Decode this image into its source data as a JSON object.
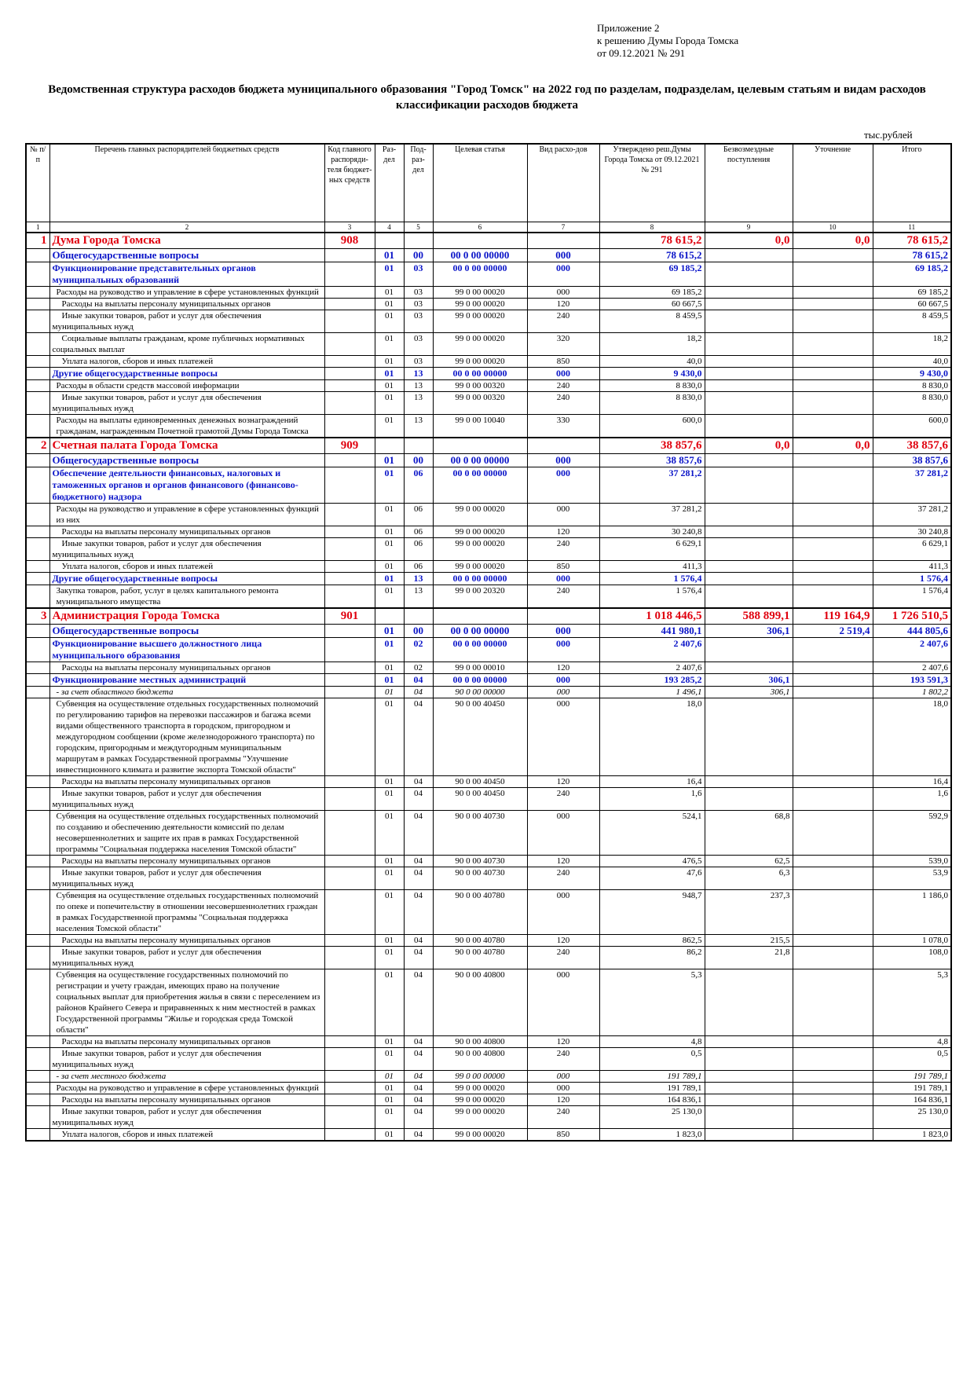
{
  "appendix": {
    "line1": "Приложение 2",
    "line2": "к решению Думы Города Томска",
    "line3": "от 09.12.2021 № 291"
  },
  "title": "Ведомственная структура расходов бюджета муниципального образования \"Город Томск\" на 2022 год по разделам, подразделам, целевым статьям и видам расходов классификации расходов бюджета",
  "units": "тыс.рублей",
  "columns": [
    "№ п/п",
    "Перечень главных распорядителей бюджетных средств",
    "Код главного распоряди-теля бюджет-ных средств",
    "Раз-дел",
    "Под-раз-дел",
    "Целевая статья",
    "Вид расхо-дов",
    "Утверждено реш.Думы Города Томска от 09.12.2021 № 291",
    "Безвозмездные поступления",
    "Уточнение",
    "Итого"
  ],
  "column_numbers": [
    "1",
    "2",
    "3",
    "4",
    "5",
    "6",
    "7",
    "8",
    "9",
    "10",
    "11"
  ],
  "rows": [
    {
      "lvl": 0,
      "no": "1",
      "name": "Дума Города Томска",
      "code": "908",
      "razd": "",
      "podr": "",
      "cs": "",
      "vr": "",
      "appr": "78 615,2",
      "bez": "0,0",
      "utoch": "0,0",
      "total": "78 615,2"
    },
    {
      "lvl": 1,
      "no": "",
      "name": "Общегосударственные вопросы",
      "code": "",
      "razd": "01",
      "podr": "00",
      "cs": "00 0 00 00000",
      "vr": "000",
      "appr": "78 615,2",
      "bez": "",
      "utoch": "",
      "total": "78 615,2"
    },
    {
      "lvl": 2,
      "no": "",
      "name": "Функционирование представительных органов муниципальных образований",
      "code": "",
      "razd": "01",
      "podr": "03",
      "cs": "00 0 00 00000",
      "vr": "000",
      "appr": "69 185,2",
      "bez": "",
      "utoch": "",
      "total": "69 185,2"
    },
    {
      "lvl": 3,
      "no": "",
      "name": "Расходы на руководство и управление в сфере установленных функций",
      "code": "",
      "razd": "01",
      "podr": "03",
      "cs": "99 0 00 00020",
      "vr": "000",
      "appr": "69 185,2",
      "bez": "",
      "utoch": "",
      "total": "69 185,2"
    },
    {
      "lvl": 4,
      "no": "",
      "name": "Расходы на выплаты персоналу муниципальных органов",
      "code": "",
      "razd": "01",
      "podr": "03",
      "cs": "99 0 00 00020",
      "vr": "120",
      "appr": "60 667,5",
      "bez": "",
      "utoch": "",
      "total": "60 667,5"
    },
    {
      "lvl": 4,
      "no": "",
      "name": "Иные закупки товаров, работ и услуг для обеспечения муниципальных нужд",
      "code": "",
      "razd": "01",
      "podr": "03",
      "cs": "99 0 00 00020",
      "vr": "240",
      "appr": "8 459,5",
      "bez": "",
      "utoch": "",
      "total": "8 459,5"
    },
    {
      "lvl": 4,
      "no": "",
      "name": "Социальные выплаты гражданам, кроме публичных нормативных социальных выплат",
      "code": "",
      "razd": "01",
      "podr": "03",
      "cs": "99 0 00 00020",
      "vr": "320",
      "appr": "18,2",
      "bez": "",
      "utoch": "",
      "total": "18,2"
    },
    {
      "lvl": 4,
      "no": "",
      "name": "Уплата налогов, сборов и иных платежей",
      "code": "",
      "razd": "01",
      "podr": "03",
      "cs": "99 0 00 00020",
      "vr": "850",
      "appr": "40,0",
      "bez": "",
      "utoch": "",
      "total": "40,0"
    },
    {
      "lvl": 2,
      "no": "",
      "name": "Другие общегосударственные вопросы",
      "code": "",
      "razd": "01",
      "podr": "13",
      "cs": "00 0 00 00000",
      "vr": "000",
      "appr": "9 430,0",
      "bez": "",
      "utoch": "",
      "total": "9 430,0"
    },
    {
      "lvl": 3,
      "no": "",
      "name": "Расходы в области средств массовой информации",
      "code": "",
      "razd": "01",
      "podr": "13",
      "cs": "99 0 00 00320",
      "vr": "240",
      "appr": "8 830,0",
      "bez": "",
      "utoch": "",
      "total": "8 830,0"
    },
    {
      "lvl": 4,
      "no": "",
      "name": "Иные закупки товаров, работ и услуг для обеспечения муниципальных нужд",
      "code": "",
      "razd": "01",
      "podr": "13",
      "cs": "99 0 00 00320",
      "vr": "240",
      "appr": "8 830,0",
      "bez": "",
      "utoch": "",
      "total": "8 830,0"
    },
    {
      "lvl": 3,
      "no": "",
      "name": "Расходы на выплаты единовременных денежных вознаграждений гражданам, награжденным Почетной грамотой Думы Города Томска",
      "code": "",
      "razd": "01",
      "podr": "13",
      "cs": "99 0 00 10040",
      "vr": "330",
      "appr": "600,0",
      "bez": "",
      "utoch": "",
      "total": "600,0"
    },
    {
      "lvl": 0,
      "no": "2",
      "name": "Счетная палата Города Томска",
      "code": "909",
      "razd": "",
      "podr": "",
      "cs": "",
      "vr": "",
      "appr": "38 857,6",
      "bez": "0,0",
      "utoch": "0,0",
      "total": "38 857,6"
    },
    {
      "lvl": 1,
      "no": "",
      "name": "Общегосударственные вопросы",
      "code": "",
      "razd": "01",
      "podr": "00",
      "cs": "00 0 00 00000",
      "vr": "000",
      "appr": "38 857,6",
      "bez": "",
      "utoch": "",
      "total": "38 857,6"
    },
    {
      "lvl": 2,
      "no": "",
      "name": "Обеспечение деятельности финансовых, налоговых и таможенных органов и органов финансового (финансово-бюджетного) надзора",
      "code": "",
      "razd": "01",
      "podr": "06",
      "cs": "00 0 00 00000",
      "vr": "000",
      "appr": "37 281,2",
      "bez": "",
      "utoch": "",
      "total": "37 281,2"
    },
    {
      "lvl": 3,
      "no": "",
      "name": "Расходы на руководство и управление в сфере установленных функций из них",
      "code": "",
      "razd": "01",
      "podr": "06",
      "cs": "99 0 00 00020",
      "vr": "000",
      "appr": "37 281,2",
      "bez": "",
      "utoch": "",
      "total": "37 281,2"
    },
    {
      "lvl": 4,
      "no": "",
      "name": "Расходы на выплаты персоналу муниципальных органов",
      "code": "",
      "razd": "01",
      "podr": "06",
      "cs": "99 0 00 00020",
      "vr": "120",
      "appr": "30 240,8",
      "bez": "",
      "utoch": "",
      "total": "30 240,8"
    },
    {
      "lvl": 4,
      "no": "",
      "name": "Иные закупки товаров, работ и услуг для обеспечения муниципальных нужд",
      "code": "",
      "razd": "01",
      "podr": "06",
      "cs": "99 0 00 00020",
      "vr": "240",
      "appr": "6 629,1",
      "bez": "",
      "utoch": "",
      "total": "6 629,1"
    },
    {
      "lvl": 4,
      "no": "",
      "name": "Уплата налогов, сборов и иных платежей",
      "code": "",
      "razd": "01",
      "podr": "06",
      "cs": "99 0 00 00020",
      "vr": "850",
      "appr": "411,3",
      "bez": "",
      "utoch": "",
      "total": "411,3"
    },
    {
      "lvl": 2,
      "no": "",
      "name": "Другие общегосударственные вопросы",
      "code": "",
      "razd": "01",
      "podr": "13",
      "cs": "00 0 00 00000",
      "vr": "000",
      "appr": "1 576,4",
      "bez": "",
      "utoch": "",
      "total": "1 576,4"
    },
    {
      "lvl": 3,
      "no": "",
      "name": "Закупка товаров, работ, услуг в целях капитального ремонта муниципального имущества",
      "code": "",
      "razd": "01",
      "podr": "13",
      "cs": "99 0 00 20320",
      "vr": "240",
      "appr": "1 576,4",
      "bez": "",
      "utoch": "",
      "total": "1 576,4"
    },
    {
      "lvl": 0,
      "no": "3",
      "name": "Администрация Города Томска",
      "code": "901",
      "razd": "",
      "podr": "",
      "cs": "",
      "vr": "",
      "appr": "1 018 446,5",
      "bez": "588 899,1",
      "utoch": "119 164,9",
      "total": "1 726 510,5"
    },
    {
      "lvl": 1,
      "no": "",
      "name": "Общегосударственные вопросы",
      "code": "",
      "razd": "01",
      "podr": "00",
      "cs": "00 0 00 00000",
      "vr": "000",
      "appr": "441 980,1",
      "bez": "306,1",
      "utoch": "2 519,4",
      "total": "444 805,6"
    },
    {
      "lvl": 2,
      "no": "",
      "name": "Функционирование высшего должностного лица муниципального образования",
      "code": "",
      "razd": "01",
      "podr": "02",
      "cs": "00 0 00 00000",
      "vr": "000",
      "appr": "2 407,6",
      "bez": "",
      "utoch": "",
      "total": "2 407,6"
    },
    {
      "lvl": 4,
      "no": "",
      "name": "Расходы на выплаты персоналу муниципальных органов",
      "code": "",
      "razd": "01",
      "podr": "02",
      "cs": "99 0 00 00010",
      "vr": "120",
      "appr": "2 407,6",
      "bez": "",
      "utoch": "",
      "total": "2 407,6"
    },
    {
      "lvl": 2,
      "no": "",
      "name": "Функционирование местных администраций",
      "code": "",
      "razd": "01",
      "podr": "04",
      "cs": "00 0 00 00000",
      "vr": "000",
      "appr": "193 285,2",
      "bez": "306,1",
      "utoch": "",
      "total": "193 591,3"
    },
    {
      "lvl": "ital",
      "no": "",
      "name": "- за счет областного бюджета",
      "code": "",
      "razd": "01",
      "podr": "04",
      "cs": "90 0 00 00000",
      "vr": "000",
      "appr": "1 496,1",
      "bez": "306,1",
      "utoch": "",
      "total": "1 802,2"
    },
    {
      "lvl": 3,
      "no": "",
      "name": "Субвенция на осуществление отдельных государственных полномочий по регулированию тарифов на перевозки пассажиров и багажа всеми видами общественного транспорта в городском, пригородном и междугородном сообщении (кроме железнодорожного транспорта) по городским, пригородным и междугородным муниципальным маршрутам в рамках Государственной программы \"Улучшение инвестиционного климата и развитие экспорта Томской области\"",
      "code": "",
      "razd": "01",
      "podr": "04",
      "cs": "90 0 00 40450",
      "vr": "000",
      "appr": "18,0",
      "bez": "",
      "utoch": "",
      "total": "18,0"
    },
    {
      "lvl": 4,
      "no": "",
      "name": "Расходы на выплаты персоналу муниципальных органов",
      "code": "",
      "razd": "01",
      "podr": "04",
      "cs": "90 0 00 40450",
      "vr": "120",
      "appr": "16,4",
      "bez": "",
      "utoch": "",
      "total": "16,4"
    },
    {
      "lvl": 4,
      "no": "",
      "name": "Иные закупки товаров, работ и услуг для обеспечения муниципальных нужд",
      "code": "",
      "razd": "01",
      "podr": "04",
      "cs": "90 0 00 40450",
      "vr": "240",
      "appr": "1,6",
      "bez": "",
      "utoch": "",
      "total": "1,6"
    },
    {
      "lvl": 3,
      "no": "",
      "name": "Субвенция на осуществление отдельных государственных полномочий по созданию и обеспечению деятельности комиссий по делам несовершеннолетних и защите их прав в рамках Государственной программы \"Социальная поддержка населения Томской области\"",
      "code": "",
      "razd": "01",
      "podr": "04",
      "cs": "90 0 00 40730",
      "vr": "000",
      "appr": "524,1",
      "bez": "68,8",
      "utoch": "",
      "total": "592,9"
    },
    {
      "lvl": 4,
      "no": "",
      "name": "Расходы на выплаты персоналу муниципальных органов",
      "code": "",
      "razd": "01",
      "podr": "04",
      "cs": "90 0 00 40730",
      "vr": "120",
      "appr": "476,5",
      "bez": "62,5",
      "utoch": "",
      "total": "539,0"
    },
    {
      "lvl": 4,
      "no": "",
      "name": "Иные закупки товаров, работ и услуг для обеспечения муниципальных нужд",
      "code": "",
      "razd": "01",
      "podr": "04",
      "cs": "90 0 00 40730",
      "vr": "240",
      "appr": "47,6",
      "bez": "6,3",
      "utoch": "",
      "total": "53,9"
    },
    {
      "lvl": 3,
      "no": "",
      "name": "Субвенция на осуществление отдельных государственных полномочий по опеке и попечительству в отношении несовершеннолетних граждан в рамках Государственной программы \"Социальная поддержка населения Томской области\"",
      "code": "",
      "razd": "01",
      "podr": "04",
      "cs": "90 0 00 40780",
      "vr": "000",
      "appr": "948,7",
      "bez": "237,3",
      "utoch": "",
      "total": "1 186,0"
    },
    {
      "lvl": 4,
      "no": "",
      "name": "Расходы на выплаты персоналу муниципальных органов",
      "code": "",
      "razd": "01",
      "podr": "04",
      "cs": "90 0 00 40780",
      "vr": "120",
      "appr": "862,5",
      "bez": "215,5",
      "utoch": "",
      "total": "1 078,0"
    },
    {
      "lvl": 4,
      "no": "",
      "name": "Иные закупки товаров, работ и услуг для обеспечения муниципальных нужд",
      "code": "",
      "razd": "01",
      "podr": "04",
      "cs": "90 0 00 40780",
      "vr": "240",
      "appr": "86,2",
      "bez": "21,8",
      "utoch": "",
      "total": "108,0"
    },
    {
      "lvl": 3,
      "no": "",
      "name": "Субвенция на осуществление государственных полномочий по регистрации и учету граждан, имеющих право на получение социальных выплат для приобретения жилья в связи с переселением из районов Крайнего Севера и приравненных к ним местностей в рамках Государственной программы \"Жилье и городская среда Томской области\"",
      "code": "",
      "razd": "01",
      "podr": "04",
      "cs": "90 0 00 40800",
      "vr": "000",
      "appr": "5,3",
      "bez": "",
      "utoch": "",
      "total": "5,3"
    },
    {
      "lvl": 4,
      "no": "",
      "name": "Расходы на выплаты персоналу муниципальных органов",
      "code": "",
      "razd": "01",
      "podr": "04",
      "cs": "90 0 00 40800",
      "vr": "120",
      "appr": "4,8",
      "bez": "",
      "utoch": "",
      "total": "4,8"
    },
    {
      "lvl": 4,
      "no": "",
      "name": "Иные закупки товаров, работ и услуг для обеспечения муниципальных нужд",
      "code": "",
      "razd": "01",
      "podr": "04",
      "cs": "90 0 00 40800",
      "vr": "240",
      "appr": "0,5",
      "bez": "",
      "utoch": "",
      "total": "0,5"
    },
    {
      "lvl": "ital",
      "no": "",
      "name": "- за счет местного бюджета",
      "code": "",
      "razd": "01",
      "podr": "04",
      "cs": "99 0 00 00000",
      "vr": "000",
      "appr": "191 789,1",
      "bez": "",
      "utoch": "",
      "total": "191 789,1"
    },
    {
      "lvl": 3,
      "no": "",
      "name": "Расходы на руководство и управление в сфере установленных функций",
      "code": "",
      "razd": "01",
      "podr": "04",
      "cs": "99 0 00 00020",
      "vr": "000",
      "appr": "191 789,1",
      "bez": "",
      "utoch": "",
      "total": "191 789,1"
    },
    {
      "lvl": 4,
      "no": "",
      "name": "Расходы на выплаты персоналу муниципальных органов",
      "code": "",
      "razd": "01",
      "podr": "04",
      "cs": "99 0 00 00020",
      "vr": "120",
      "appr": "164 836,1",
      "bez": "",
      "utoch": "",
      "total": "164 836,1"
    },
    {
      "lvl": 4,
      "no": "",
      "name": "Иные закупки товаров, работ и услуг для обеспечения муниципальных нужд",
      "code": "",
      "razd": "01",
      "podr": "04",
      "cs": "99 0 00 00020",
      "vr": "240",
      "appr": "25 130,0",
      "bez": "",
      "utoch": "",
      "total": "25 130,0"
    },
    {
      "lvl": 4,
      "no": "",
      "name": "Уплата налогов, сборов и иных платежей",
      "code": "",
      "razd": "01",
      "podr": "04",
      "cs": "99 0 00 00020",
      "vr": "850",
      "appr": "1 823,0",
      "bez": "",
      "utoch": "",
      "total": "1 823,0"
    }
  ]
}
